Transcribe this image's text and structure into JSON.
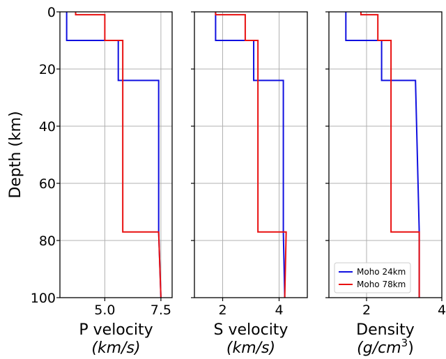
{
  "chart_data": {
    "type": "line",
    "shared_y": {
      "label": "Depth (km)",
      "ylim": [
        0,
        100
      ],
      "inverted": true,
      "ticks": [
        0,
        20,
        40,
        60,
        80,
        100
      ],
      "tick_labels": [
        "0",
        "20",
        "40",
        "60",
        "80",
        "100"
      ]
    },
    "grid": true,
    "legend": {
      "placement": "lower-right",
      "panel": 2,
      "entries": [
        {
          "name": "Moho 24km",
          "color": "#1010e0"
        },
        {
          "name": "Moho 78km",
          "color": "#e81010"
        }
      ]
    },
    "panels": [
      {
        "xlabel_line1": "P velocity",
        "xlabel_line2": "(km/s)",
        "xlim": [
          3.0,
          8.0
        ],
        "x_ticks": [
          5.0,
          7.5
        ],
        "x_tick_labels": [
          "5.0",
          "7.5"
        ],
        "series": [
          {
            "name": "Moho 24km",
            "color": "#1010e0",
            "points": [
              [
                3.3,
                0
              ],
              [
                3.3,
                10
              ],
              [
                5.6,
                10
              ],
              [
                5.6,
                24
              ],
              [
                7.4,
                24
              ],
              [
                7.4,
                77
              ],
              [
                7.5,
                100
              ]
            ]
          },
          {
            "name": "Moho 78km",
            "color": "#e81010",
            "points": [
              [
                3.7,
                0
              ],
              [
                3.7,
                1
              ],
              [
                5.0,
                1
              ],
              [
                5.0,
                10
              ],
              [
                5.8,
                10
              ],
              [
                5.8,
                77
              ],
              [
                7.4,
                77
              ],
              [
                7.5,
                100
              ]
            ]
          }
        ]
      },
      {
        "xlabel_line1": "S velocity",
        "xlabel_line2": "(km/s)",
        "xlim": [
          1.0,
          5.0
        ],
        "x_ticks": [
          2,
          4
        ],
        "x_tick_labels": [
          "2",
          "4"
        ],
        "series": [
          {
            "name": "Moho 24km",
            "color": "#1010e0",
            "points": [
              [
                1.75,
                0
              ],
              [
                1.75,
                10
              ],
              [
                3.1,
                10
              ],
              [
                3.1,
                24
              ],
              [
                4.15,
                24
              ],
              [
                4.15,
                77
              ],
              [
                4.2,
                100
              ]
            ]
          },
          {
            "name": "Moho 78km",
            "color": "#e81010",
            "points": [
              [
                1.75,
                0
              ],
              [
                1.75,
                1
              ],
              [
                2.8,
                1
              ],
              [
                2.8,
                10
              ],
              [
                3.25,
                10
              ],
              [
                3.25,
                77
              ],
              [
                4.25,
                77
              ],
              [
                4.2,
                100
              ]
            ]
          }
        ]
      },
      {
        "xlabel_line1": "Density",
        "xlabel_line2": "(g/cm",
        "xlabel_line2_sup": "3",
        "xlabel_line2_end": ")",
        "xlim": [
          1.0,
          4.0
        ],
        "x_ticks": [
          2,
          4
        ],
        "x_tick_labels": [
          "2",
          "4"
        ],
        "series": [
          {
            "name": "Moho 24km",
            "color": "#1010e0",
            "points": [
              [
                1.45,
                0
              ],
              [
                1.45,
                10
              ],
              [
                2.4,
                10
              ],
              [
                2.4,
                24
              ],
              [
                3.3,
                24
              ],
              [
                3.4,
                77
              ],
              [
                3.4,
                100
              ]
            ]
          },
          {
            "name": "Moho 78km",
            "color": "#e81010",
            "points": [
              [
                1.85,
                0
              ],
              [
                1.85,
                1
              ],
              [
                2.3,
                1
              ],
              [
                2.3,
                10
              ],
              [
                2.65,
                10
              ],
              [
                2.65,
                77
              ],
              [
                3.4,
                77
              ],
              [
                3.4,
                100
              ]
            ]
          }
        ]
      }
    ]
  }
}
